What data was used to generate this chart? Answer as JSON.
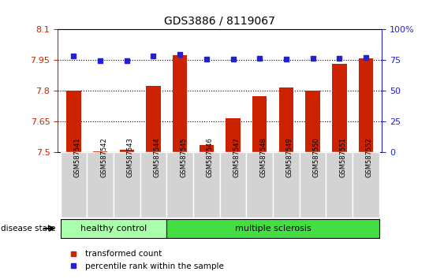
{
  "title": "GDS3886 / 8119067",
  "samples": [
    "GSM587541",
    "GSM587542",
    "GSM587543",
    "GSM587544",
    "GSM587545",
    "GSM587546",
    "GSM587547",
    "GSM587548",
    "GSM587549",
    "GSM587550",
    "GSM587551",
    "GSM587552"
  ],
  "bar_values": [
    7.8,
    7.505,
    7.51,
    7.825,
    7.975,
    7.535,
    7.665,
    7.775,
    7.815,
    7.8,
    7.93,
    7.96
  ],
  "dot_values": [
    7.97,
    7.948,
    7.948,
    7.97,
    7.978,
    7.953,
    7.955,
    7.957,
    7.955,
    7.957,
    7.957,
    7.962
  ],
  "bar_color": "#cc2200",
  "dot_color": "#2222cc",
  "ylim_left": [
    7.5,
    8.1
  ],
  "ylim_right": [
    0,
    100
  ],
  "yticks_left": [
    7.5,
    7.65,
    7.8,
    7.95,
    8.1
  ],
  "ytick_labels_left": [
    "7.5",
    "7.65",
    "7.8",
    "7.95",
    "8.1"
  ],
  "yticks_right": [
    0,
    25,
    50,
    75,
    100
  ],
  "ytick_labels_right": [
    "0",
    "25",
    "50",
    "75",
    "100%"
  ],
  "hlines": [
    7.65,
    7.8,
    7.95
  ],
  "healthy_color": "#aaffaa",
  "ms_color": "#44dd44",
  "bar_width": 0.55,
  "base_value": 7.5,
  "fig_width": 5.63,
  "fig_height": 3.54
}
